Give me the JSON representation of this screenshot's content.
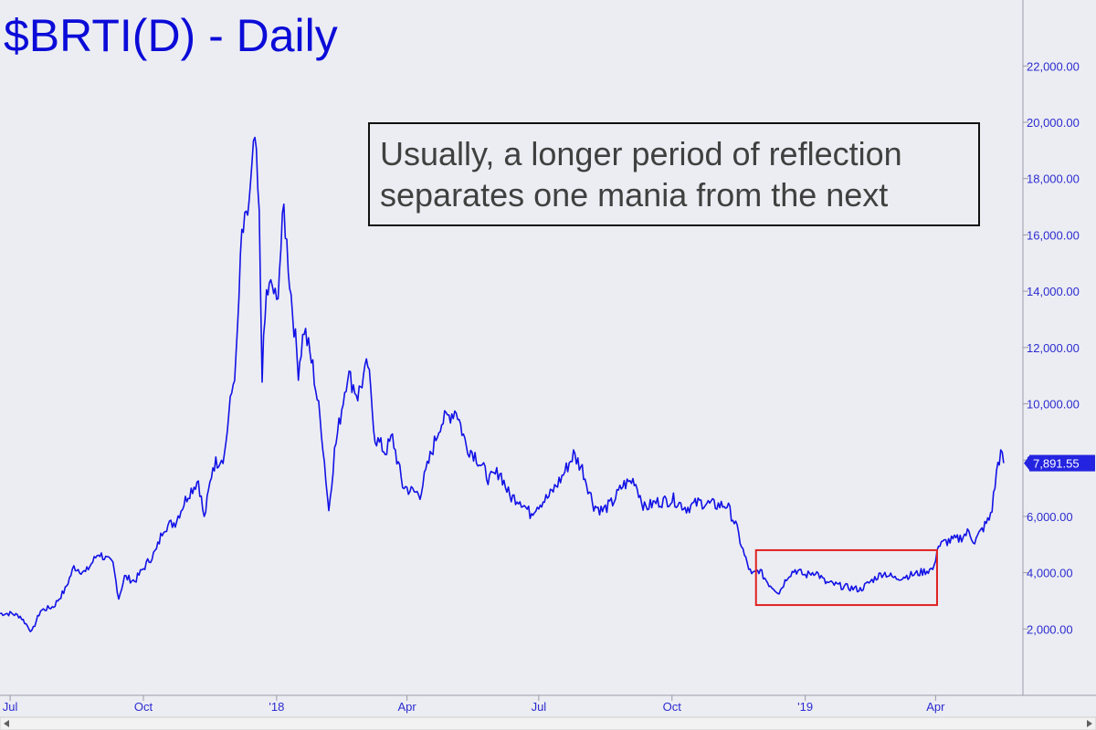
{
  "chart_data": {
    "type": "line",
    "title": "$BRTI(D) - Daily",
    "xlabel": "",
    "ylabel": "",
    "ylim": [
      0,
      24500
    ],
    "y_ticks": [
      {
        "value": 2000,
        "label": "2,000.00"
      },
      {
        "value": 4000,
        "label": "4,000.00"
      },
      {
        "value": 6000,
        "label": "6,000.00"
      },
      {
        "value": 8000,
        "label": "8,000.00"
      },
      {
        "value": 10000,
        "label": "10,000.00"
      },
      {
        "value": 12000,
        "label": "12,000.00"
      },
      {
        "value": 14000,
        "label": "14,000.00"
      },
      {
        "value": 16000,
        "label": "16,000.00"
      },
      {
        "value": 18000,
        "label": "18,000.00"
      },
      {
        "value": 20000,
        "label": "20,000.00"
      },
      {
        "value": 22000,
        "label": "22,000.00"
      }
    ],
    "x_ticks": [
      {
        "date": "2017-07-01",
        "label": "Jul"
      },
      {
        "date": "2017-10-01",
        "label": "Oct"
      },
      {
        "date": "2018-01-01",
        "label": "'18"
      },
      {
        "date": "2018-04-01",
        "label": "Apr"
      },
      {
        "date": "2018-07-01",
        "label": "Jul"
      },
      {
        "date": "2018-10-01",
        "label": "Oct"
      },
      {
        "date": "2019-01-01",
        "label": "'19"
      },
      {
        "date": "2019-04-01",
        "label": "Apr"
      }
    ],
    "x_range": [
      "2017-06-24",
      "2019-05-25"
    ],
    "series": [
      {
        "color": "#1212e6",
        "points": [
          [
            "2017-06-24",
            2550
          ],
          [
            "2017-07-02",
            2550
          ],
          [
            "2017-07-08",
            2450
          ],
          [
            "2017-07-16",
            1900
          ],
          [
            "2017-07-22",
            2650
          ],
          [
            "2017-07-31",
            2800
          ],
          [
            "2017-08-08",
            3400
          ],
          [
            "2017-08-14",
            4200
          ],
          [
            "2017-08-22",
            4000
          ],
          [
            "2017-08-31",
            4700
          ],
          [
            "2017-09-05",
            4500
          ],
          [
            "2017-09-10",
            4300
          ],
          [
            "2017-09-14",
            3100
          ],
          [
            "2017-09-18",
            3850
          ],
          [
            "2017-09-25",
            3700
          ],
          [
            "2017-10-03",
            4300
          ],
          [
            "2017-10-10",
            4800
          ],
          [
            "2017-10-15",
            5600
          ],
          [
            "2017-10-23",
            5800
          ],
          [
            "2017-11-01",
            6800
          ],
          [
            "2017-11-08",
            7300
          ],
          [
            "2017-11-12",
            5900
          ],
          [
            "2017-11-18",
            7800
          ],
          [
            "2017-11-26",
            8200
          ],
          [
            "2017-11-29",
            9600
          ],
          [
            "2017-12-04",
            11500
          ],
          [
            "2017-12-08",
            16000
          ],
          [
            "2017-12-11",
            16400
          ],
          [
            "2017-12-14",
            17600
          ],
          [
            "2017-12-17",
            19400
          ],
          [
            "2017-12-20",
            16500
          ],
          [
            "2017-12-22",
            11100
          ],
          [
            "2017-12-25",
            13900
          ],
          [
            "2017-12-29",
            14200
          ],
          [
            "2018-01-01",
            13500
          ],
          [
            "2018-01-06",
            16900
          ],
          [
            "2018-01-10",
            14400
          ],
          [
            "2018-01-16",
            11200
          ],
          [
            "2018-01-20",
            12700
          ],
          [
            "2018-01-26",
            11300
          ],
          [
            "2018-02-01",
            9100
          ],
          [
            "2018-02-06",
            6200
          ],
          [
            "2018-02-10",
            8300
          ],
          [
            "2018-02-19",
            11100
          ],
          [
            "2018-02-26",
            10300
          ],
          [
            "2018-03-05",
            11400
          ],
          [
            "2018-03-10",
            8800
          ],
          [
            "2018-03-17",
            8300
          ],
          [
            "2018-03-22",
            8800
          ],
          [
            "2018-03-29",
            7100
          ],
          [
            "2018-04-04",
            6900
          ],
          [
            "2018-04-10",
            6800
          ],
          [
            "2018-04-17",
            8100
          ],
          [
            "2018-04-24",
            9300
          ],
          [
            "2018-05-05",
            9800
          ],
          [
            "2018-05-12",
            8500
          ],
          [
            "2018-05-18",
            8200
          ],
          [
            "2018-05-28",
            7300
          ],
          [
            "2018-06-04",
            7600
          ],
          [
            "2018-06-11",
            6700
          ],
          [
            "2018-06-18",
            6600
          ],
          [
            "2018-06-25",
            6100
          ],
          [
            "2018-06-30",
            6400
          ],
          [
            "2018-07-08",
            6700
          ],
          [
            "2018-07-17",
            7400
          ],
          [
            "2018-07-25",
            8200
          ],
          [
            "2018-07-31",
            7700
          ],
          [
            "2018-08-08",
            6400
          ],
          [
            "2018-08-14",
            6200
          ],
          [
            "2018-08-21",
            6500
          ],
          [
            "2018-08-28",
            7100
          ],
          [
            "2018-09-05",
            7300
          ],
          [
            "2018-09-12",
            6300
          ],
          [
            "2018-09-20",
            6500
          ],
          [
            "2018-10-02",
            6600
          ],
          [
            "2018-10-11",
            6300
          ],
          [
            "2018-10-20",
            6500
          ],
          [
            "2018-10-31",
            6400
          ],
          [
            "2018-11-08",
            6400
          ],
          [
            "2018-11-14",
            5700
          ],
          [
            "2018-11-20",
            4600
          ],
          [
            "2018-11-25",
            3900
          ],
          [
            "2018-11-30",
            4100
          ],
          [
            "2018-12-07",
            3600
          ],
          [
            "2018-12-14",
            3300
          ],
          [
            "2018-12-20",
            3900
          ],
          [
            "2018-12-25",
            4100
          ],
          [
            "2019-01-01",
            3900
          ],
          [
            "2019-01-08",
            4050
          ],
          [
            "2019-01-15",
            3650
          ],
          [
            "2019-01-28",
            3500
          ],
          [
            "2019-02-08",
            3400
          ],
          [
            "2019-02-18",
            3800
          ],
          [
            "2019-02-24",
            4000
          ],
          [
            "2019-03-04",
            3800
          ],
          [
            "2019-03-18",
            3950
          ],
          [
            "2019-03-31",
            4150
          ],
          [
            "2019-04-02",
            4900
          ],
          [
            "2019-04-08",
            5100
          ],
          [
            "2019-04-17",
            5200
          ],
          [
            "2019-04-24",
            5450
          ],
          [
            "2019-04-28",
            5100
          ],
          [
            "2019-05-04",
            5600
          ],
          [
            "2019-05-08",
            5900
          ],
          [
            "2019-05-10",
            6300
          ],
          [
            "2019-05-12",
            7100
          ],
          [
            "2019-05-14",
            7900
          ],
          [
            "2019-05-16",
            8200
          ],
          [
            "2019-05-18",
            7891.55
          ]
        ]
      }
    ],
    "last_value": {
      "value": 7891.55,
      "label": "7,891.55"
    },
    "annotation": {
      "lines": [
        "Usually, a longer period of reflection",
        "separates one mania from the next"
      ]
    },
    "highlight_box": {
      "x_start": "2018-11-28",
      "x_end": "2019-04-02",
      "y_low": 2850,
      "y_high": 4800,
      "color": "#e02020"
    },
    "grid": false,
    "legend": "none"
  }
}
